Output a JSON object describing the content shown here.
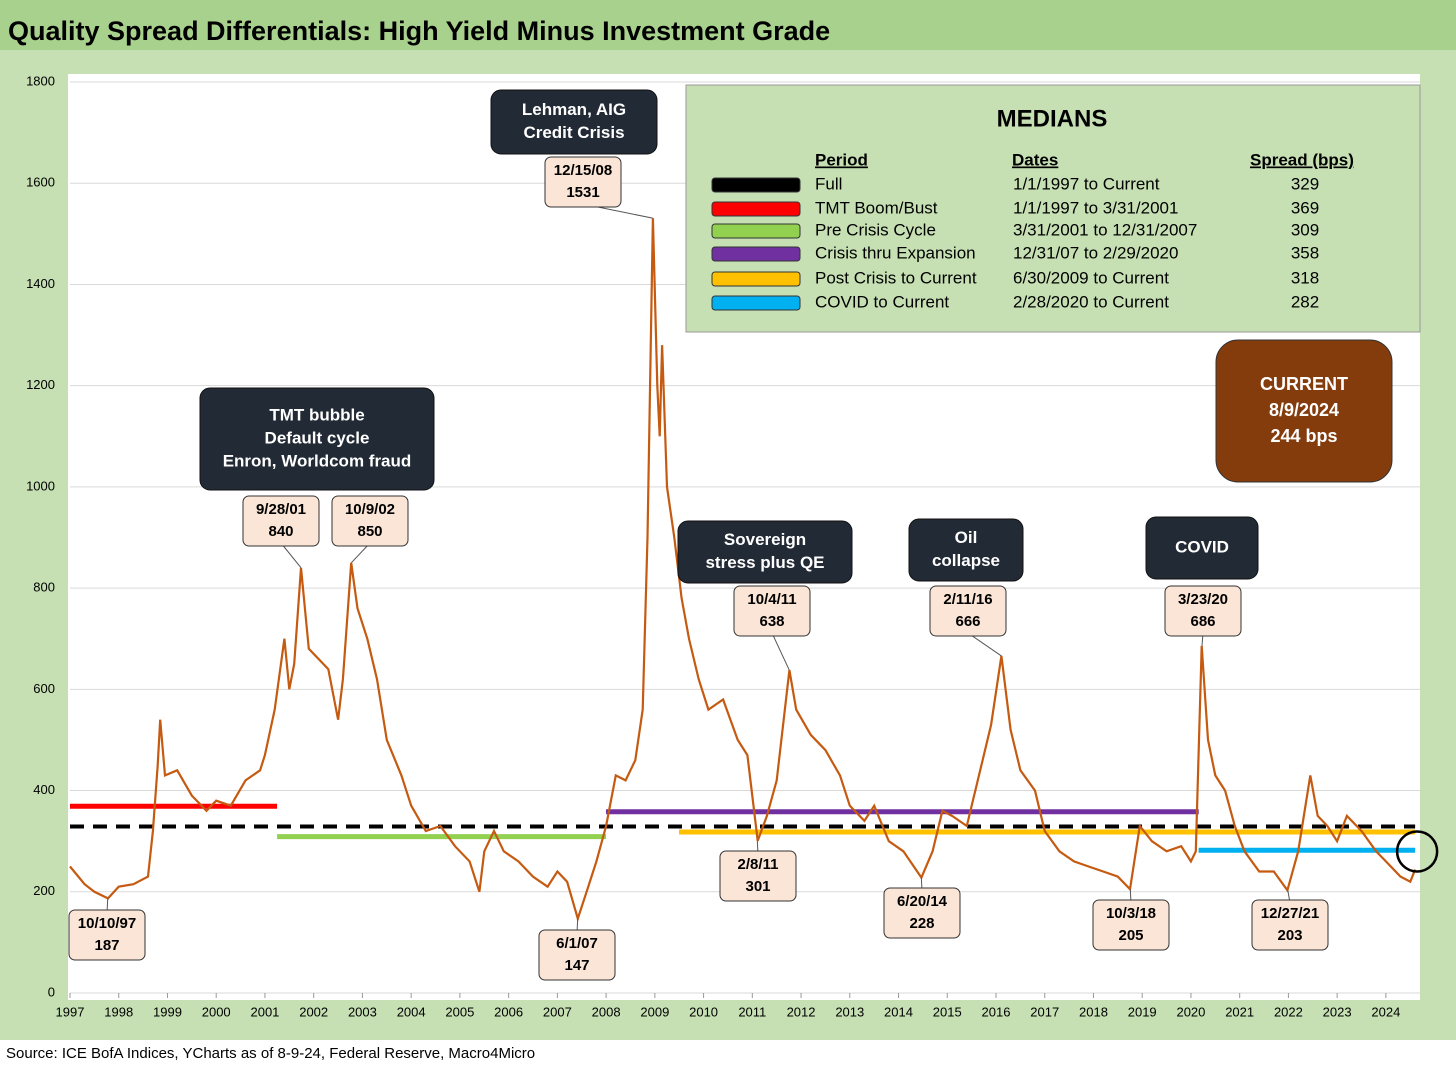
{
  "chart_data": {
    "type": "line",
    "title": "Quality Spread Differentials: High Yield Minus Investment Grade",
    "source": "Source: ICE BofA Indices, YCharts as of 8-9-24, Federal Reserve, Macro4Micro",
    "xlim": [
      1997,
      2024.7
    ],
    "xticks": [
      1997,
      1998,
      1999,
      2000,
      2001,
      2002,
      2003,
      2004,
      2005,
      2006,
      2007,
      2008,
      2009,
      2010,
      2011,
      2012,
      2013,
      2014,
      2015,
      2016,
      2017,
      2018,
      2019,
      2020,
      2021,
      2022,
      2023,
      2024
    ],
    "ylim": [
      0,
      1800
    ],
    "yticks": [
      0,
      200,
      400,
      600,
      800,
      1000,
      1200,
      1400,
      1600,
      1800
    ],
    "grid": true,
    "series": [
      {
        "color": "#c55a11",
        "x": [
          1997.0,
          1997.3,
          1997.5,
          1997.78,
          1998.0,
          1998.3,
          1998.6,
          1998.7,
          1998.8,
          1998.85,
          1998.95,
          1999.2,
          1999.5,
          1999.8,
          2000.0,
          2000.3,
          2000.6,
          2000.9,
          2001.0,
          2001.2,
          2001.4,
          2001.5,
          2001.6,
          2001.74,
          2001.9,
          2002.1,
          2002.3,
          2002.5,
          2002.6,
          2002.77,
          2002.9,
          2003.1,
          2003.3,
          2003.5,
          2003.8,
          2004.0,
          2004.3,
          2004.6,
          2004.9,
          2005.2,
          2005.4,
          2005.5,
          2005.7,
          2005.9,
          2006.2,
          2006.5,
          2006.8,
          2007.0,
          2007.2,
          2007.42,
          2007.6,
          2007.8,
          2008.0,
          2008.2,
          2008.4,
          2008.6,
          2008.75,
          2008.85,
          2008.96,
          2009.05,
          2009.1,
          2009.15,
          2009.25,
          2009.4,
          2009.55,
          2009.7,
          2009.9,
          2010.1,
          2010.4,
          2010.7,
          2010.9,
          2011.11,
          2011.3,
          2011.5,
          2011.76,
          2011.9,
          2012.2,
          2012.5,
          2012.8,
          2013.0,
          2013.3,
          2013.5,
          2013.8,
          2014.1,
          2014.47,
          2014.7,
          2014.9,
          2015.1,
          2015.4,
          2015.7,
          2015.9,
          2016.11,
          2016.3,
          2016.5,
          2016.8,
          2017.0,
          2017.3,
          2017.6,
          2017.9,
          2018.2,
          2018.5,
          2018.75,
          2018.95,
          2019.2,
          2019.5,
          2019.8,
          2020.0,
          2020.1,
          2020.22,
          2020.35,
          2020.5,
          2020.7,
          2020.9,
          2021.1,
          2021.4,
          2021.7,
          2021.98,
          2022.2,
          2022.45,
          2022.6,
          2022.8,
          2023.0,
          2023.2,
          2023.5,
          2023.8,
          2024.0,
          2024.3,
          2024.5,
          2024.6
        ],
        "values": [
          250,
          215,
          200,
          187,
          210,
          215,
          230,
          320,
          450,
          540,
          430,
          440,
          390,
          360,
          380,
          370,
          420,
          440,
          470,
          560,
          700,
          600,
          650,
          840,
          680,
          660,
          640,
          540,
          620,
          850,
          760,
          700,
          620,
          500,
          430,
          370,
          320,
          330,
          290,
          260,
          200,
          280,
          320,
          280,
          260,
          230,
          210,
          240,
          220,
          147,
          200,
          260,
          330,
          430,
          420,
          460,
          560,
          900,
          1531,
          1200,
          1100,
          1280,
          1000,
          900,
          780,
          700,
          620,
          560,
          580,
          500,
          470,
          301,
          350,
          420,
          638,
          560,
          510,
          480,
          430,
          370,
          340,
          370,
          300,
          280,
          228,
          280,
          360,
          350,
          330,
          450,
          530,
          666,
          520,
          440,
          400,
          320,
          280,
          260,
          250,
          240,
          230,
          205,
          330,
          300,
          280,
          290,
          260,
          280,
          686,
          500,
          430,
          400,
          330,
          280,
          240,
          240,
          203,
          280,
          430,
          350,
          330,
          300,
          350,
          320,
          280,
          260,
          230,
          220,
          244
        ]
      }
    ],
    "annotations": [
      {
        "date": "10/10/97",
        "value": 187
      },
      {
        "date": "9/28/01",
        "value": 840
      },
      {
        "date": "10/9/02",
        "value": 850
      },
      {
        "date": "6/1/07",
        "value": 147
      },
      {
        "date": "12/15/08",
        "value": 1531
      },
      {
        "date": "2/8/11",
        "value": 301
      },
      {
        "date": "10/4/11",
        "value": 638
      },
      {
        "date": "6/20/14",
        "value": 228
      },
      {
        "date": "2/11/16",
        "value": 666
      },
      {
        "date": "10/3/18",
        "value": 205
      },
      {
        "date": "3/23/20",
        "value": 686
      },
      {
        "date": "12/27/21",
        "value": 203
      }
    ],
    "events": [
      [
        "Lehman, AIG",
        "Credit Crisis"
      ],
      [
        "TMT bubble",
        "Default cycle",
        "Enron, Worldcom fraud"
      ],
      [
        "Sovereign",
        "stress plus QE"
      ],
      [
        "Oil",
        "collapse"
      ],
      [
        "COVID"
      ]
    ],
    "current": [
      "CURRENT",
      "8/9/2024",
      "244 bps"
    ],
    "medians": {
      "title": "MEDIANS",
      "headers": [
        "Period",
        "Dates",
        "Spread (bps)"
      ],
      "current_word": "Current",
      "rows": [
        {
          "period": "Full",
          "dates": "1/1/1997 to Current",
          "spread": 329,
          "color": "#000000",
          "dashed": true
        },
        {
          "period": "TMT Boom/Bust",
          "dates": "1/1/1997 to 3/31/2001",
          "spread": 369,
          "color": "#ff0000"
        },
        {
          "period": "Pre Crisis Cycle",
          "dates": "3/31/2001 to 12/31/2007",
          "spread": 309,
          "color": "#92d050"
        },
        {
          "period": "Crisis thru Expansion",
          "dates": "12/31/07 to 2/29/2020",
          "spread": 358,
          "color": "#7030a0"
        },
        {
          "period": "Post Crisis to Current",
          "dates": "6/30/2009 to Current",
          "spread": 318,
          "color": "#ffc000"
        },
        {
          "period": "COVID to Current",
          "dates": "2/28/2020 to Current",
          "spread": 282,
          "color": "#00b0f0"
        }
      ]
    }
  }
}
